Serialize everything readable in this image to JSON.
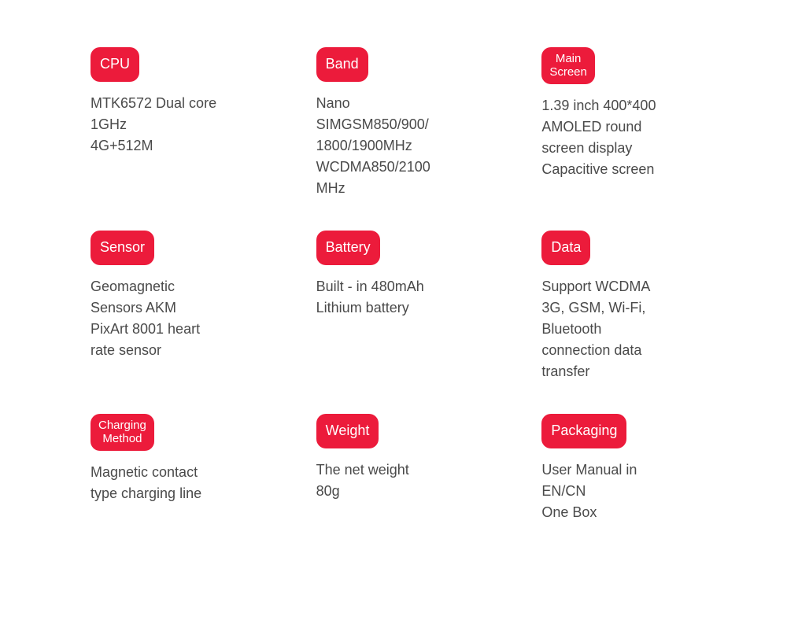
{
  "specs": [
    {
      "badge": "CPU",
      "badge_multiline": false,
      "description": "MTK6572 Dual core\n1GHz\n4G+512M"
    },
    {
      "badge": "Band",
      "badge_multiline": false,
      "description": "Nano\nSIMGSM850/900/\n1800/1900MHz\nWCDMA850/2100\nMHz"
    },
    {
      "badge": "Main\nScreen",
      "badge_multiline": true,
      "description": "1.39 inch 400*400\nAMOLED round\nscreen display\nCapacitive screen"
    },
    {
      "badge": "Sensor",
      "badge_multiline": false,
      "description": "Geomagnetic\nSensors AKM\nPixArt 8001 heart\nrate sensor"
    },
    {
      "badge": "Battery",
      "badge_multiline": false,
      "description": "Built - in 480mAh\nLithium battery"
    },
    {
      "badge": "Data",
      "badge_multiline": false,
      "description": "Support WCDMA\n3G, GSM, Wi-Fi,\nBluetooth\nconnection data\ntransfer"
    },
    {
      "badge": "Charging\nMethod",
      "badge_multiline": true,
      "description": "Magnetic contact\ntype charging line"
    },
    {
      "badge": "Weight",
      "badge_multiline": false,
      "description": "The net weight\n80g"
    },
    {
      "badge": "Packaging",
      "badge_multiline": false,
      "description": "User Manual in\nEN/CN\nOne Box"
    }
  ],
  "styling": {
    "badge_bg_color": "#ec1b3b",
    "badge_text_color": "#ffffff",
    "badge_border_radius": 12,
    "badge_font_size": 18,
    "badge_font_size_multiline": 15,
    "description_font_size": 18,
    "description_color": "#4a4a4a",
    "background_color": "#ffffff",
    "grid_columns": 3,
    "column_gap": 90,
    "row_gap": 40
  }
}
